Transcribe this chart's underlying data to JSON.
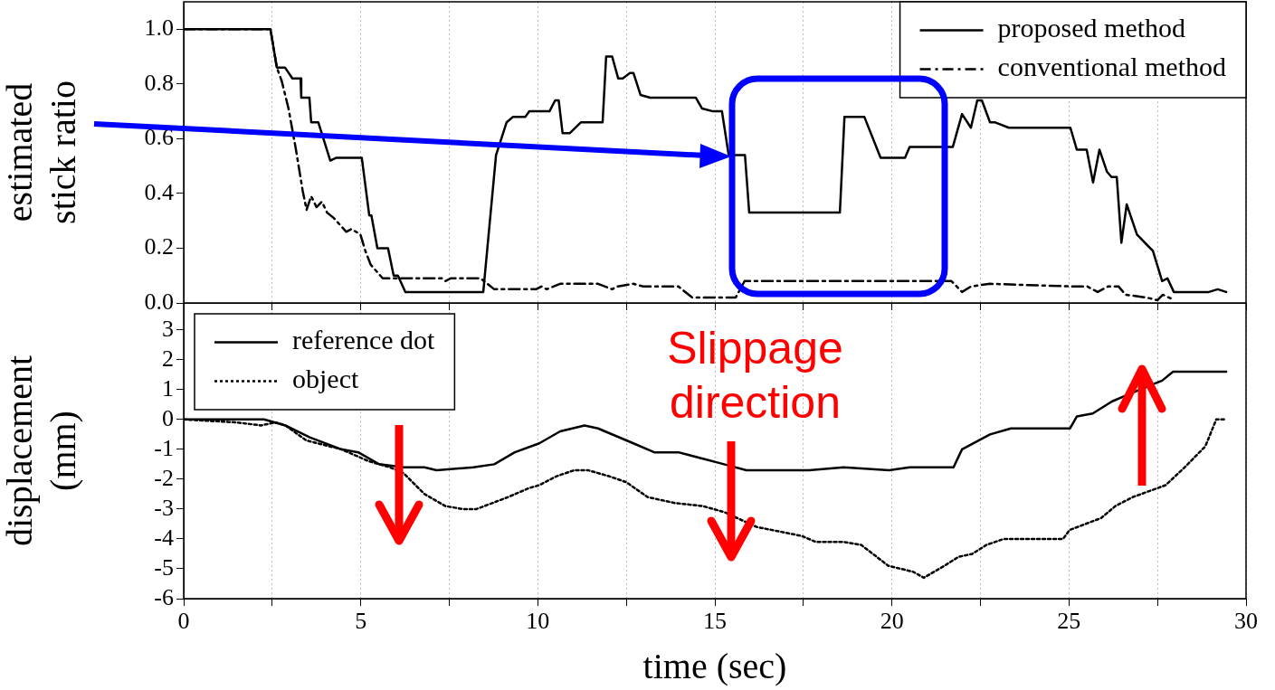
{
  "chart_data": [
    {
      "type": "line",
      "ylabel": "estimated stick ratio",
      "xlim": [
        0,
        30
      ],
      "xticks": [
        0,
        {
          "value": 2.5,
          "label": null
        },
        5,
        {
          "value": 7.5,
          "label": null
        },
        10,
        {
          "value": 12.5,
          "label": null
        },
        15,
        {
          "value": 17.5,
          "label": null
        },
        20,
        {
          "value": 22.5,
          "label": null
        },
        25,
        {
          "value": 27.5,
          "label": null
        },
        30
      ],
      "ylim": [
        0,
        1.1
      ],
      "yticks": [
        {
          "value": 0,
          "label": "0.0"
        },
        {
          "value": 0.2,
          "label": "0.2"
        },
        {
          "value": 0.4,
          "label": "0.4"
        },
        {
          "value": 0.6,
          "label": "0.6"
        },
        {
          "value": 0.8,
          "label": "0.8"
        },
        {
          "value": 1,
          "label": "1.0"
        }
      ],
      "tick_labels": "y",
      "grid": "x",
      "legend": "top right",
      "marker": "none",
      "series": [
        {
          "name": "proposed method",
          "color": "#000000",
          "line_style": "solid",
          "x": [
            0,
            2.45,
            2.63,
            2.86,
            3.07,
            3.3,
            3.32,
            3.55,
            3.6,
            3.8,
            4.14,
            4.3,
            5.03,
            5.24,
            5.3,
            5.47,
            5.77,
            5.93,
            6.05,
            6.26,
            8.46,
            8.82,
            9.12,
            9.3,
            9.65,
            9.76,
            10.33,
            10.49,
            10.59,
            10.7,
            10.9,
            11.22,
            11.83,
            11.93,
            12.1,
            12.27,
            12.4,
            12.6,
            12.7,
            12.9,
            13.17,
            14.46,
            14.64,
            14.95,
            15.2,
            15.39,
            15.85,
            15.97,
            18.53,
            18.66,
            19.22,
            19.68,
            20.37,
            20.5,
            21.72,
            21.98,
            22.23,
            22.41,
            22.54,
            22.77,
            22.9,
            23.3,
            25.04,
            25.22,
            25.5,
            25.68,
            25.86,
            26.07,
            26.2,
            26.35,
            26.48,
            26.63,
            26.92,
            27.37,
            27.63,
            27.78,
            27.96,
            28.95,
            29.2,
            29.44
          ],
          "values": [
            1,
            1,
            0.86,
            0.86,
            0.82,
            0.82,
            0.75,
            0.75,
            0.66,
            0.66,
            0.52,
            0.53,
            0.53,
            0.32,
            0.32,
            0.2,
            0.2,
            0.1,
            0.1,
            0.04,
            0.04,
            0.54,
            0.66,
            0.68,
            0.68,
            0.7,
            0.7,
            0.74,
            0.74,
            0.62,
            0.62,
            0.66,
            0.66,
            0.9,
            0.9,
            0.82,
            0.82,
            0.84,
            0.84,
            0.76,
            0.75,
            0.75,
            0.71,
            0.7,
            0.7,
            0.54,
            0.54,
            0.33,
            0.33,
            0.68,
            0.68,
            0.53,
            0.53,
            0.57,
            0.57,
            0.69,
            0.64,
            0.74,
            0.74,
            0.66,
            0.66,
            0.64,
            0.64,
            0.56,
            0.56,
            0.44,
            0.56,
            0.48,
            0.46,
            0.46,
            0.22,
            0.36,
            0.25,
            0.19,
            0.08,
            0.09,
            0.04,
            0.04,
            0.05,
            0.04
          ]
        },
        {
          "name": "conventional method",
          "color": "#000000",
          "line_style": "dashed",
          "x": [
            0,
            2.45,
            2.63,
            2.77,
            2.96,
            3.17,
            3.36,
            3.47,
            3.6,
            3.75,
            3.9,
            4.05,
            4.24,
            4.59,
            4.74,
            4.99,
            5.13,
            5.28,
            5.62,
            7.29,
            7.39,
            7.54,
            8.38,
            8.77,
            9.16,
            9.95,
            10.1,
            10.25,
            10.63,
            11.02,
            11.41,
            11.7,
            12.1,
            12.24,
            12.7,
            12.99,
            13.97,
            14.36,
            15.25,
            15.59,
            15.84,
            16.48,
            17.07,
            17.46,
            17.85,
            18.05,
            18.44,
            19.22,
            19.52,
            20.01,
            20.6,
            20.9,
            21.68,
            21.98,
            22.23,
            22.77,
            25.13,
            25.52,
            25.81,
            26.1,
            26.4,
            26.6,
            27.18,
            27.5,
            27.65,
            27.98
          ],
          "values": [
            1,
            1,
            0.86,
            0.81,
            0.71,
            0.56,
            0.41,
            0.34,
            0.39,
            0.35,
            0.37,
            0.33,
            0.31,
            0.26,
            0.27,
            0.25,
            0.19,
            0.14,
            0.09,
            0.09,
            0.08,
            0.09,
            0.09,
            0.05,
            0.05,
            0.05,
            0.06,
            0.05,
            0.07,
            0.07,
            0.07,
            0.07,
            0.05,
            0.06,
            0.07,
            0.06,
            0.06,
            0.02,
            0.02,
            0.02,
            0.08,
            0.08,
            0.08,
            0.08,
            0.08,
            0.08,
            0.08,
            0.08,
            0.08,
            0.08,
            0.08,
            0.08,
            0.08,
            0.04,
            0.06,
            0.07,
            0.06,
            0.06,
            0.04,
            0.06,
            0.06,
            0.03,
            0.02,
            0.01,
            0.03,
            0.01
          ]
        }
      ]
    },
    {
      "type": "line",
      "xlabel": "time (sec)",
      "ylabel": "displacement (mm)",
      "xlim": [
        0,
        30
      ],
      "xticks": [
        0,
        {
          "value": 2.5,
          "label": null
        },
        5,
        {
          "value": 7.5,
          "label": null
        },
        10,
        {
          "value": 12.5,
          "label": null
        },
        15,
        {
          "value": 17.5,
          "label": null
        },
        20,
        {
          "value": 22.5,
          "label": null
        },
        25,
        {
          "value": 27.5,
          "label": null
        },
        30
      ],
      "ylim": [
        -6,
        3.9
      ],
      "yticks": [
        -6,
        -5,
        -4,
        -3,
        -2,
        -1,
        0,
        1,
        2,
        3
      ],
      "grid": "x",
      "legend": "top left",
      "marker": "none",
      "annotations": [
        "Slippage direction"
      ],
      "series": [
        {
          "name": "reference dot",
          "color": "#000000",
          "line_style": "solid",
          "x": [
            0,
            2.27,
            2.87,
            3.56,
            4.45,
            4.93,
            5.52,
            6.21,
            6.8,
            7.14,
            8.18,
            8.77,
            9.35,
            10.04,
            10.63,
            11.32,
            11.7,
            12.7,
            13.29,
            13.97,
            15.26,
            15.89,
            17.66,
            18.64,
            19.92,
            20.5,
            21.74,
            21.98,
            22.77,
            23.36,
            25.03,
            25.22,
            25.67,
            26.21,
            26.8,
            27.63,
            27.94,
            28.38,
            29.44
          ],
          "values": [
            0,
            0,
            -0.2,
            -0.6,
            -1,
            -1.1,
            -1.5,
            -1.6,
            -1.6,
            -1.7,
            -1.6,
            -1.5,
            -1.1,
            -0.8,
            -0.4,
            -0.2,
            -0.3,
            -0.8,
            -1.1,
            -1.1,
            -1.5,
            -1.7,
            -1.7,
            -1.6,
            -1.7,
            -1.6,
            -1.6,
            -1,
            -0.5,
            -0.3,
            -0.3,
            0.1,
            0.2,
            0.6,
            0.9,
            1.3,
            1.6,
            1.6,
            1.6
          ]
        },
        {
          "name": "object",
          "color": "#000000",
          "line_style": "dotted",
          "x": [
            0,
            1.5,
            2.18,
            2.6,
            2.87,
            3.46,
            4.45,
            5.23,
            5.82,
            6.21,
            6.8,
            7.39,
            7.88,
            8.27,
            9.16,
            9.75,
            10.04,
            10.53,
            11.03,
            11.42,
            12.01,
            12.5,
            13.1,
            13.88,
            14.66,
            15.26,
            16.18,
            17.45,
            17.85,
            18.64,
            19.13,
            19.9,
            20.6,
            20.9,
            21.48,
            21.88,
            22.27,
            22.67,
            23.16,
            24.83,
            25.02,
            25.91,
            26.31,
            26.8,
            27.73,
            28.27,
            28.85,
            29.16,
            29.4
          ],
          "values": [
            0,
            -0.1,
            -0.2,
            -0.1,
            -0.2,
            -0.7,
            -1,
            -1.4,
            -1.6,
            -1.8,
            -2.5,
            -2.9,
            -3,
            -3,
            -2.6,
            -2.3,
            -2.2,
            -1.9,
            -1.7,
            -1.7,
            -1.9,
            -2.1,
            -2.6,
            -2.8,
            -2.9,
            -3.1,
            -3.6,
            -3.9,
            -4.1,
            -4.1,
            -4.2,
            -4.9,
            -5.1,
            -5.3,
            -4.9,
            -4.6,
            -4.5,
            -4.2,
            -4,
            -4,
            -3.7,
            -3.3,
            -2.9,
            -2.6,
            -2.2,
            -1.6,
            -0.9,
            0,
            0
          ]
        }
      ]
    }
  ]
}
